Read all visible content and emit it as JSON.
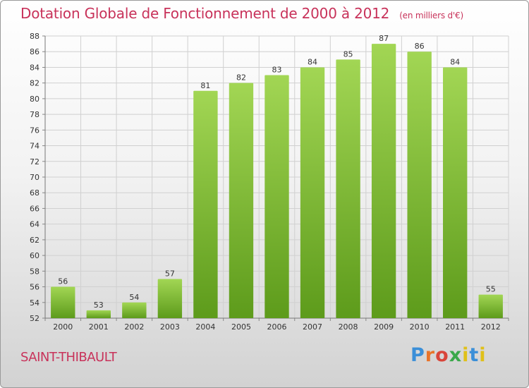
{
  "title": "Dotation Globale de Fonctionnement de 2000 à 2012",
  "subtitle": "(en milliers d'€)",
  "commune": "SAINT-THIBAULT",
  "logo": {
    "text": "Proxiti",
    "letter_colors": [
      "#3b8fd8",
      "#e8742a",
      "#d9453a",
      "#3aa84a",
      "#e0c019",
      "#3b8fd8",
      "#e0c019"
    ]
  },
  "colors": {
    "title": "#c8325a",
    "bar_light": "#a2d654",
    "bar_dark": "#5d9b1b",
    "grid": "#d0d0d0"
  },
  "chart_data": {
    "type": "bar",
    "categories": [
      "2000",
      "2001",
      "2002",
      "2003",
      "2004",
      "2005",
      "2006",
      "2007",
      "2008",
      "2009",
      "2010",
      "2011",
      "2012"
    ],
    "values": [
      56,
      53,
      54,
      57,
      81,
      82,
      83,
      84,
      85,
      87,
      86,
      84,
      55
    ],
    "data_labels": [
      "56",
      "53",
      "54",
      "57",
      "81",
      "82",
      "83",
      "84",
      "85",
      "87",
      "86",
      "84",
      "55"
    ],
    "ylim": [
      52,
      88
    ],
    "yticks": [
      52,
      54,
      56,
      58,
      60,
      62,
      64,
      66,
      68,
      70,
      72,
      74,
      76,
      78,
      80,
      82,
      84,
      86,
      88
    ],
    "grid": true,
    "xlabel": "",
    "ylabel": ""
  }
}
